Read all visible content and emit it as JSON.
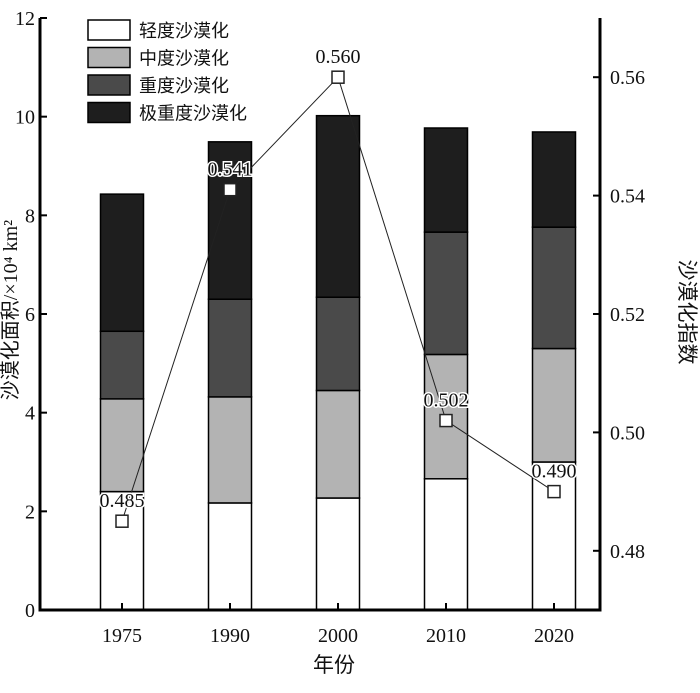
{
  "chart_data": {
    "type": "bar",
    "stacked": true,
    "categories": [
      "1975",
      "1990",
      "2000",
      "2010",
      "2020"
    ],
    "series": [
      {
        "name": "轻度沙漠化",
        "color": "#ffffff",
        "values": [
          2.4,
          2.17,
          2.27,
          2.66,
          3.0
        ]
      },
      {
        "name": "中度沙漠化",
        "color": "#b3b3b3",
        "values": [
          1.88,
          2.15,
          2.18,
          2.52,
          2.3
        ]
      },
      {
        "name": "重度沙漠化",
        "color": "#4a4a4a",
        "values": [
          1.37,
          1.98,
          1.89,
          2.48,
          2.46
        ]
      },
      {
        "name": "极重度沙漠化",
        "color": "#1e1e1e",
        "values": [
          2.78,
          3.19,
          3.68,
          2.11,
          1.93
        ]
      }
    ],
    "line_series": {
      "name": "沙漠化指数",
      "axis": "right",
      "values": [
        0.485,
        0.541,
        0.56,
        0.502,
        0.49
      ],
      "labels": [
        "0.485",
        "0.541",
        "0.560",
        "0.502",
        "0.490"
      ]
    },
    "xlabel": "年份",
    "ylabel": "沙漠化面积/×10⁴ km²",
    "y2label": "沙漠化指数",
    "ylim": [
      0,
      12
    ],
    "yticks": [
      "0",
      "2",
      "4",
      "6",
      "8",
      "10",
      "12"
    ],
    "y2lim": [
      0.47,
      0.57
    ],
    "y2ticks": [
      "0.48",
      "0.50",
      "0.52",
      "0.54",
      "0.56"
    ],
    "legend": "top-left",
    "grid": false
  }
}
